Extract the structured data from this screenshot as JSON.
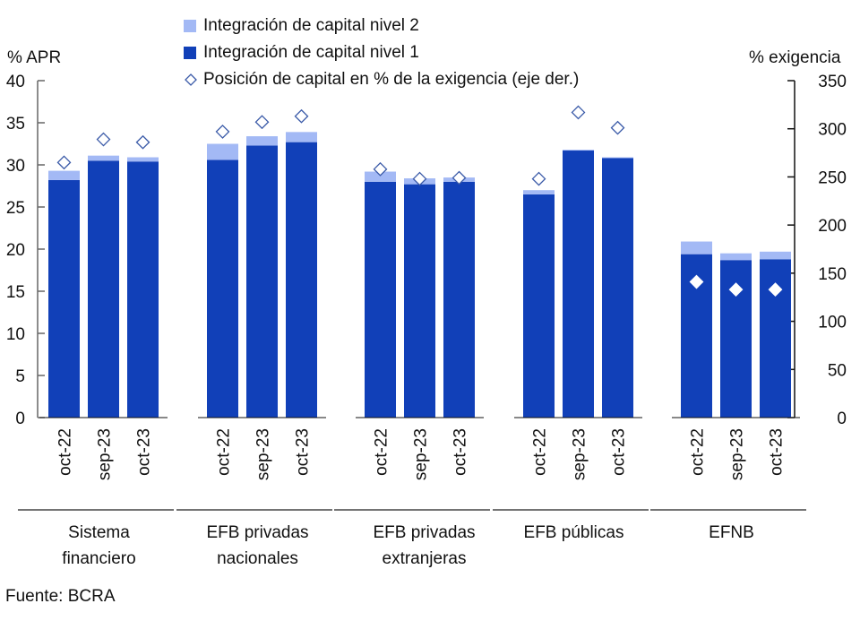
{
  "chart_data": {
    "type": "bar",
    "stacked": true,
    "title": "",
    "ylabel_left": "% APR",
    "ylabel_right": "% exigencia",
    "ylim_left": [
      0,
      40
    ],
    "ylim_right": [
      0,
      350
    ],
    "yticks_left": [
      "0",
      "5",
      "10",
      "15",
      "20",
      "25",
      "30",
      "35",
      "40"
    ],
    "yticks_right": [
      "0",
      "50",
      "100",
      "150",
      "200",
      "250",
      "300",
      "350"
    ],
    "grid": false,
    "legend_position": "top",
    "groups": [
      {
        "name": "Sistema financiero",
        "lines": [
          "Sistema",
          "financiero"
        ]
      },
      {
        "name": "EFB privadas nacionales",
        "lines": [
          "EFB privadas",
          "nacionales"
        ]
      },
      {
        "name": "EFB privadas extranjeras",
        "lines": [
          "EFB privadas",
          "extranjeras"
        ]
      },
      {
        "name": "EFB públicas",
        "lines": [
          "EFB públicas"
        ]
      },
      {
        "name": "EFNB",
        "lines": [
          "EFNB"
        ]
      }
    ],
    "categories": [
      "oct-22",
      "sep-23",
      "oct-23"
    ],
    "series": [
      {
        "name": "Integración de capital nivel 1",
        "type": "bar",
        "color": "#1140b8",
        "values": [
          [
            28.2,
            30.5,
            30.4
          ],
          [
            30.6,
            32.3,
            32.7
          ],
          [
            28.0,
            27.7,
            28.0
          ],
          [
            26.5,
            31.7,
            30.8
          ],
          [
            19.4,
            18.7,
            18.8
          ]
        ]
      },
      {
        "name": "Integración de capital nivel 2",
        "type": "bar",
        "color": "#a3b9f5",
        "values": [
          [
            1.1,
            0.6,
            0.5
          ],
          [
            1.9,
            1.1,
            1.2
          ],
          [
            1.2,
            0.7,
            0.5
          ],
          [
            0.5,
            0.1,
            0.1
          ],
          [
            1.5,
            0.8,
            0.9
          ]
        ]
      },
      {
        "name": "Posición de capital en % de la exigencia (eje der.)",
        "type": "scatter",
        "axis": "right",
        "marker": "diamond",
        "color": "#3a5aa8",
        "values": [
          [
            265,
            289,
            286
          ],
          [
            297,
            307,
            313
          ],
          [
            258,
            248,
            249
          ],
          [
            248,
            317,
            301
          ],
          [
            141,
            133,
            133
          ]
        ]
      }
    ],
    "legend": [
      {
        "label": "Integración de capital nivel 2",
        "color": "#a3b9f5",
        "marker": "square"
      },
      {
        "label": "Integración de capital nivel 1",
        "color": "#1140b8",
        "marker": "square"
      },
      {
        "label": "Posición de capital en % de la exigencia (eje der.)",
        "color": "#3a5aa8",
        "marker": "diamond-outline"
      }
    ]
  },
  "source": "Fuente: BCRA"
}
